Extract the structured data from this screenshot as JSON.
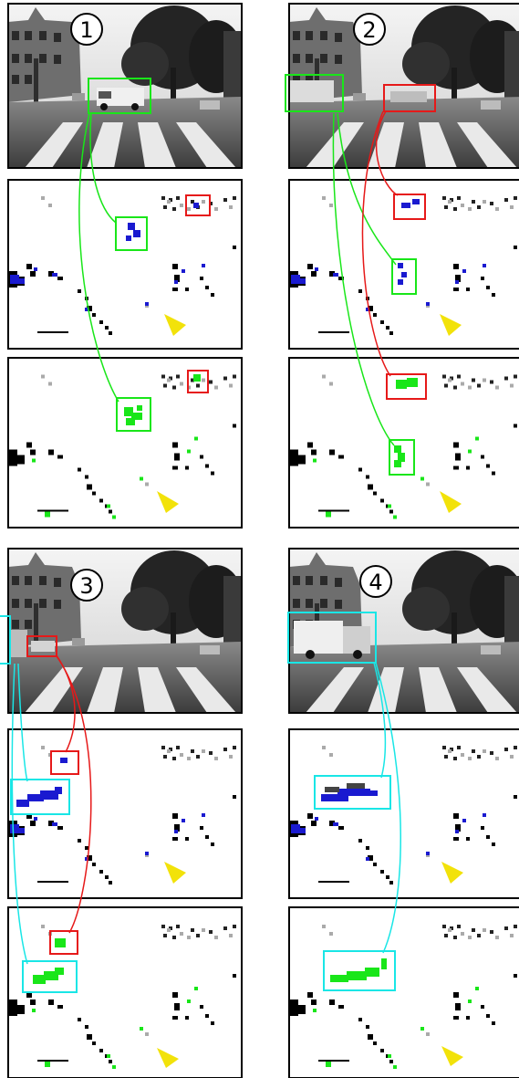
{
  "figure": {
    "groups": [
      {
        "label": "1"
      },
      {
        "label": "2"
      },
      {
        "label": "3"
      },
      {
        "label": "4"
      }
    ],
    "colors": {
      "green": "#19e619",
      "red": "#e61919",
      "cyan": "#19e6e6",
      "blue": "#1a1ad0",
      "yellow": "#f2e20a",
      "frame": "#000000"
    }
  }
}
